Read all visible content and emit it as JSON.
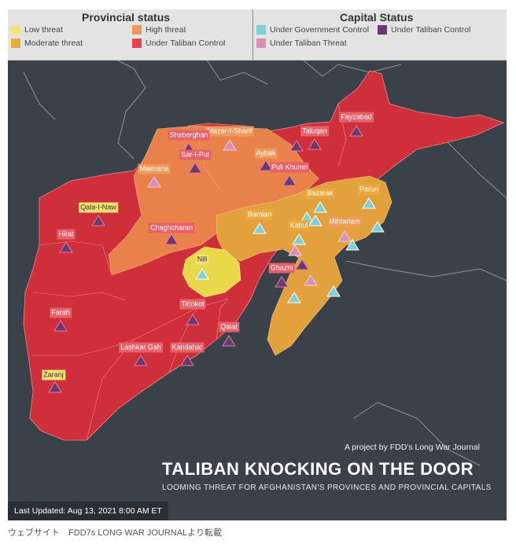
{
  "legend": {
    "provincial_title": "Provincial status",
    "capital_title": "Capital Status",
    "provincial": [
      {
        "label": "Low threat",
        "color": "#f6e27a"
      },
      {
        "label": "High threat",
        "color": "#ef9a5a"
      },
      {
        "label": "Moderate threat",
        "color": "#e9a93e"
      },
      {
        "label": "Under Taliban Control",
        "color": "#e54452"
      }
    ],
    "capital": [
      {
        "label": "Under Government Control",
        "color": "#7fd0d4"
      },
      {
        "label": "Under Taliban Control",
        "color": "#6a3a6e"
      },
      {
        "label": "Under Taliban Threat",
        "color": "#d790b4"
      }
    ]
  },
  "cities": [
    {
      "name": "Fayzabad",
      "label_style": "red",
      "status": "taliban"
    },
    {
      "name": "Taluqan",
      "label_style": "red",
      "status": "taliban"
    },
    {
      "name": "Mazar-I-Sharif",
      "label_style": "orange",
      "status": "threat"
    },
    {
      "name": "Sheberghan",
      "label_style": "red",
      "status": "taliban"
    },
    {
      "name": "Sar-I-Pul",
      "label_style": "red",
      "status": "taliban"
    },
    {
      "name": "Aybak",
      "label_style": "orange",
      "status": "taliban"
    },
    {
      "name": "Puli Khumri",
      "label_style": "red",
      "status": "taliban"
    },
    {
      "name": "Maimana",
      "label_style": "orange",
      "status": "threat"
    },
    {
      "name": "Bazarak",
      "label_style": "amber",
      "status": "government"
    },
    {
      "name": "Parun",
      "label_style": "amber",
      "status": "government"
    },
    {
      "name": "Qala-I-Naw",
      "label_style": "yellow",
      "status": "taliban"
    },
    {
      "name": "Bamian",
      "label_style": "amber",
      "status": "government"
    },
    {
      "name": "Kabul",
      "label_style": "amber",
      "status": "government"
    },
    {
      "name": "Mihtarlam",
      "label_style": "orange",
      "status": "threat"
    },
    {
      "name": "Chaghcharan",
      "label_style": "red",
      "status": "taliban"
    },
    {
      "name": "Hirat",
      "label_style": "red",
      "status": "taliban"
    },
    {
      "name": "Nili",
      "label_style": "yellow",
      "status": "government"
    },
    {
      "name": "Ghazni",
      "label_style": "red",
      "status": "taliban"
    },
    {
      "name": "Tirinkot",
      "label_style": "red",
      "status": "taliban"
    },
    {
      "name": "Farah",
      "label_style": "red",
      "status": "taliban"
    },
    {
      "name": "Qalat",
      "label_style": "red",
      "status": "taliban"
    },
    {
      "name": "Lashkar Gah",
      "label_style": "red",
      "status": "taliban"
    },
    {
      "name": "Kandahar",
      "label_style": "red",
      "status": "taliban"
    },
    {
      "name": "Zaranj",
      "label_style": "yellow",
      "status": "taliban"
    }
  ],
  "credit": "A project by FDD's Long War Journal",
  "title": "TALIBAN KNOCKING ON THE  DOOR",
  "subtitle": "LOOMING THREAT FOR AFGHANISTAN'S PROVINCES AND PROVINCIAL CAPITALS",
  "last_updated": "Last Updated: Aug 13, 2021 8:00 AM ET",
  "caption": "ウェブサイト　FDD7s LONG WAR JOURNALより転載"
}
